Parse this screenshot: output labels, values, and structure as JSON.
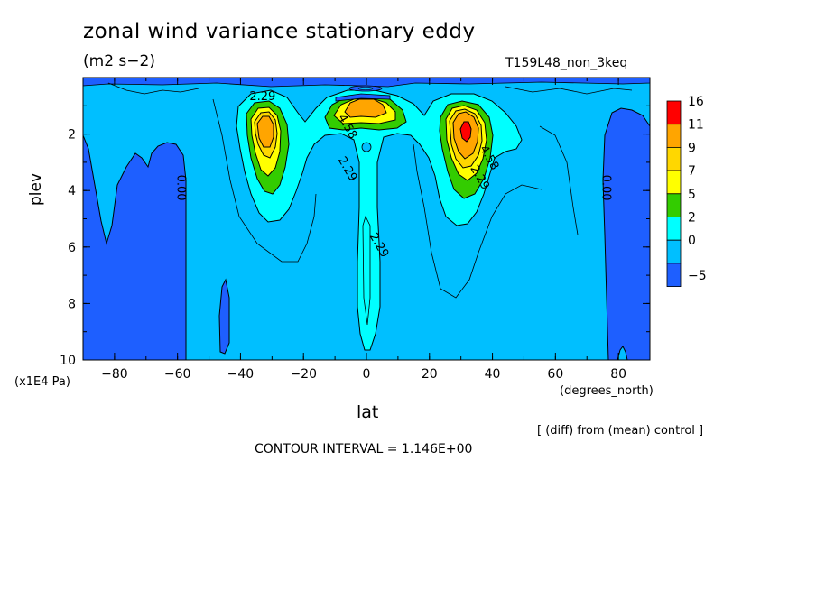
{
  "chart_data": {
    "type": "heatmap",
    "title": "zonal wind variance stationary eddy",
    "units": "(m2 s−2)",
    "run_name": "T159L48_non_3keq",
    "xlabel": "lat",
    "x_units": "(degrees_north)",
    "ylabel": "plev",
    "y_units": "(x1E4 Pa)",
    "xlim": [
      -90,
      90
    ],
    "ylim": [
      0,
      10
    ],
    "y_inverted": true,
    "x_ticks": [
      -80,
      -60,
      -40,
      -20,
      0,
      20,
      40,
      60,
      80
    ],
    "y_ticks": [
      2,
      4,
      6,
      8,
      10
    ],
    "colorbar": {
      "levels": [
        16,
        11,
        9,
        7,
        5,
        2,
        0,
        -5
      ],
      "colors": [
        "#ff0000",
        "#ffa500",
        "#ffd700",
        "#ffff00",
        "#33cc00",
        "#00ffff",
        "#00bfff",
        "#1e5fff"
      ]
    },
    "contour_labels": [
      {
        "text": "2.29",
        "lat": -33,
        "plev": 0.8
      },
      {
        "text": "4.58",
        "lat": -7,
        "plev": 1.8
      },
      {
        "text": "2.29",
        "lat": -7,
        "plev": 3.3
      },
      {
        "text": "2.29",
        "lat": 3,
        "plev": 6.0
      },
      {
        "text": "4.58",
        "lat": 38,
        "plev": 2.9
      },
      {
        "text": "2.29",
        "lat": 35,
        "plev": 3.6
      },
      {
        "text": "0.00",
        "lat": -60,
        "plev": 3.9
      },
      {
        "text": "0.00",
        "lat": 75,
        "plev": 3.9
      }
    ],
    "features": [
      {
        "name": "southern jet maximum",
        "lat": -33,
        "plev": 2.0,
        "value": 11
      },
      {
        "name": "equatorial upper maximum",
        "lat": 0,
        "plev": 1.0,
        "value": 11
      },
      {
        "name": "northern jet maximum",
        "lat": 31,
        "plev": 2.0,
        "value": 16
      }
    ],
    "contour_interval": "CONTOUR INTERVAL = 1.146E+00",
    "note": "[ (diff) from (mean) control ]"
  }
}
